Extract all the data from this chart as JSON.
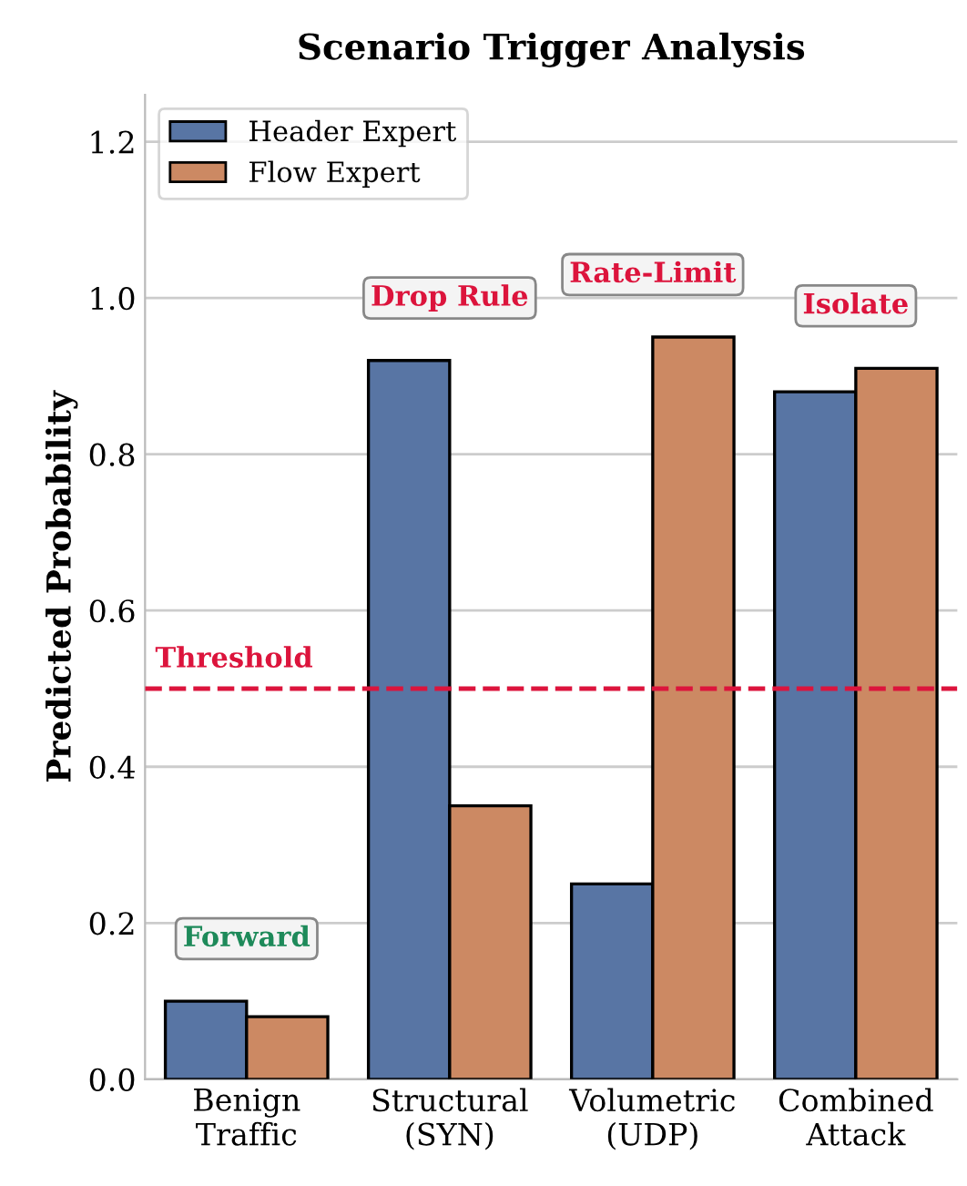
{
  "chart_data": {
    "type": "bar",
    "title": "Scenario Trigger Analysis",
    "ylabel": "Predicted Probability",
    "categories": [
      "Benign\nTraffic",
      "Structural\n(SYN)",
      "Volumetric\n(UDP)",
      "Combined\nAttack"
    ],
    "series": [
      {
        "name": "Header Expert",
        "color": "#5875a4",
        "values": [
          0.1,
          0.92,
          0.25,
          0.88
        ]
      },
      {
        "name": "Flow Expert",
        "color": "#cc8963",
        "values": [
          0.08,
          0.35,
          0.95,
          0.91
        ]
      }
    ],
    "ylim": [
      0,
      1.26
    ],
    "yticks": [
      {
        "value": 0,
        "label": "0.0"
      },
      0.2,
      0.4,
      0.6,
      0.8,
      {
        "value": 1,
        "label": "1.0"
      },
      1.2
    ],
    "grid": "y",
    "legend": "top left",
    "ref_lines": [
      {
        "axis": "y",
        "value": 0.5,
        "label": "Threshold",
        "color": "#dc143c",
        "line_style": "dashed"
      }
    ],
    "annotations": [
      "Forward",
      "Drop Rule",
      "Rate-Limit",
      "Isolate"
    ]
  }
}
